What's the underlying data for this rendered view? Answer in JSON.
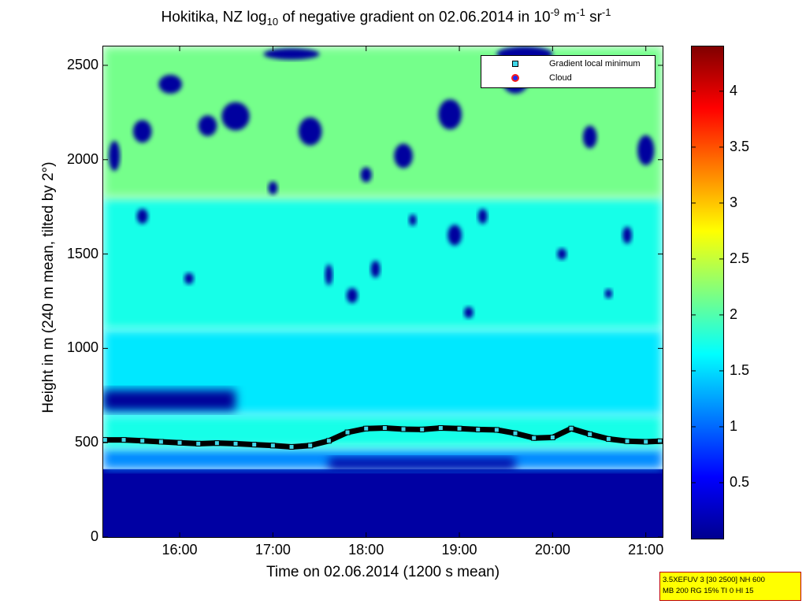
{
  "chart_data": {
    "type": "heatmap",
    "title": {
      "prefix": "Hokitika, NZ log",
      "sub": "10",
      "middle": " of negative gradient on 02.06.2014 in 10",
      "sup1": "-9",
      "unit_m": " m",
      "sup2": "-1",
      "unit_sr": " sr",
      "sup3": "-1"
    },
    "xlabel": "Time on 02.06.2014 (1200 s mean)",
    "ylabel": "Height in m (240 m mean, tilted by 2°)",
    "xlim": [
      15.18,
      21.18
    ],
    "ylim": [
      0,
      2600
    ],
    "x_ticks": [
      {
        "value": 16,
        "label": "16:00"
      },
      {
        "value": 17,
        "label": "17:00"
      },
      {
        "value": 18,
        "label": "18:00"
      },
      {
        "value": 19,
        "label": "19:00"
      },
      {
        "value": 20,
        "label": "20:00"
      },
      {
        "value": 21,
        "label": "21:00"
      }
    ],
    "y_ticks": [
      {
        "value": 0,
        "label": "0"
      },
      {
        "value": 500,
        "label": "500"
      },
      {
        "value": 1000,
        "label": "1000"
      },
      {
        "value": 1500,
        "label": "1500"
      },
      {
        "value": 2000,
        "label": "2000"
      },
      {
        "value": 2500,
        "label": "2500"
      }
    ],
    "colorbar": {
      "colormap": "jet",
      "range": [
        0,
        4.4
      ],
      "ticks": [
        {
          "value": 0.5,
          "label": "0.5"
        },
        {
          "value": 1,
          "label": "1"
        },
        {
          "value": 1.5,
          "label": "1.5"
        },
        {
          "value": 2,
          "label": "2"
        },
        {
          "value": 2.5,
          "label": "2.5"
        },
        {
          "value": 3,
          "label": "3"
        },
        {
          "value": 3.5,
          "label": "3.5"
        },
        {
          "value": 4,
          "label": "4"
        }
      ]
    },
    "legend": {
      "position": "top-right",
      "entries": [
        {
          "label": "Gradient local minimum",
          "marker": "square",
          "color": "#3fd7e8"
        },
        {
          "label": "Cloud",
          "marker": "circle",
          "color": "#1e2cf0",
          "edge": "#ff1a1a"
        }
      ]
    },
    "series": [
      {
        "marker": "square",
        "points": [
          [
            15.2,
            515
          ],
          [
            15.4,
            515
          ],
          [
            15.6,
            510
          ],
          [
            15.8,
            505
          ],
          [
            16.0,
            500
          ],
          [
            16.2,
            495
          ],
          [
            16.4,
            498
          ],
          [
            16.6,
            495
          ],
          [
            16.8,
            490
          ],
          [
            17.0,
            485
          ],
          [
            17.2,
            478
          ],
          [
            17.4,
            485
          ],
          [
            17.6,
            510
          ],
          [
            17.8,
            555
          ],
          [
            18.0,
            575
          ],
          [
            18.2,
            578
          ],
          [
            18.4,
            572
          ],
          [
            18.6,
            570
          ],
          [
            18.8,
            578
          ],
          [
            19.0,
            575
          ],
          [
            19.2,
            570
          ],
          [
            19.4,
            568
          ],
          [
            19.6,
            550
          ],
          [
            19.8,
            525
          ],
          [
            20.0,
            528
          ],
          [
            20.2,
            575
          ],
          [
            20.4,
            545
          ],
          [
            20.6,
            520
          ],
          [
            20.8,
            508
          ],
          [
            21.0,
            505
          ],
          [
            21.15,
            508
          ]
        ]
      }
    ],
    "field_regions": [
      {
        "x": [
          15.18,
          21.18
        ],
        "y": [
          0,
          360
        ],
        "value": 0.1
      },
      {
        "x": [
          15.18,
          21.18
        ],
        "y": [
          360,
          470
        ],
        "value": 1.15
      },
      {
        "x": [
          15.18,
          21.18
        ],
        "y": [
          470,
          650
        ],
        "value": 1.75
      },
      {
        "x": [
          15.18,
          21.18
        ],
        "y": [
          650,
          1100
        ],
        "value": 1.55
      },
      {
        "x": [
          15.18,
          21.18
        ],
        "y": [
          1100,
          1800
        ],
        "value": 1.75
      },
      {
        "x": [
          15.18,
          21.18
        ],
        "y": [
          1800,
          2600
        ],
        "value": 2.15
      },
      {
        "x": [
          15.18,
          16.6
        ],
        "y": [
          670,
          780
        ],
        "value": 0.05
      },
      {
        "x": [
          17.6,
          19.6
        ],
        "y": [
          360,
          420
        ],
        "value": 0.1
      }
    ],
    "low_patches": [
      [
        15.3,
        2020,
        0.12,
        160
      ],
      [
        15.6,
        2150,
        0.2,
        120
      ],
      [
        16.3,
        2180,
        0.2,
        110
      ],
      [
        16.6,
        2230,
        0.3,
        150
      ],
      [
        17.4,
        2150,
        0.25,
        150
      ],
      [
        18.4,
        2020,
        0.2,
        130
      ],
      [
        18.9,
        2240,
        0.25,
        160
      ],
      [
        19.6,
        2430,
        0.3,
        160
      ],
      [
        20.4,
        2120,
        0.15,
        120
      ],
      [
        21.0,
        2050,
        0.18,
        160
      ],
      [
        17.2,
        2560,
        0.6,
        60
      ],
      [
        19.7,
        2560,
        0.6,
        80
      ],
      [
        17.6,
        1390,
        0.08,
        110
      ],
      [
        18.1,
        1420,
        0.1,
        90
      ],
      [
        17.85,
        1280,
        0.12,
        80
      ],
      [
        18.95,
        1600,
        0.15,
        110
      ],
      [
        19.25,
        1700,
        0.1,
        80
      ],
      [
        18.5,
        1680,
        0.08,
        60
      ],
      [
        20.1,
        1500,
        0.1,
        60
      ],
      [
        20.6,
        1290,
        0.08,
        50
      ],
      [
        16.1,
        1370,
        0.1,
        60
      ],
      [
        19.1,
        1190,
        0.1,
        60
      ],
      [
        18.0,
        1920,
        0.12,
        80
      ],
      [
        20.8,
        1600,
        0.1,
        90
      ],
      [
        15.6,
        1700,
        0.12,
        80
      ],
      [
        17.0,
        1850,
        0.1,
        70
      ],
      [
        15.9,
        2400,
        0.25,
        100
      ]
    ]
  },
  "infobox": {
    "line1": "3.5XEFUV 3 [30 2500] NH 600",
    "line2": "MB 200 RG 15% TI 0 HI 15"
  }
}
